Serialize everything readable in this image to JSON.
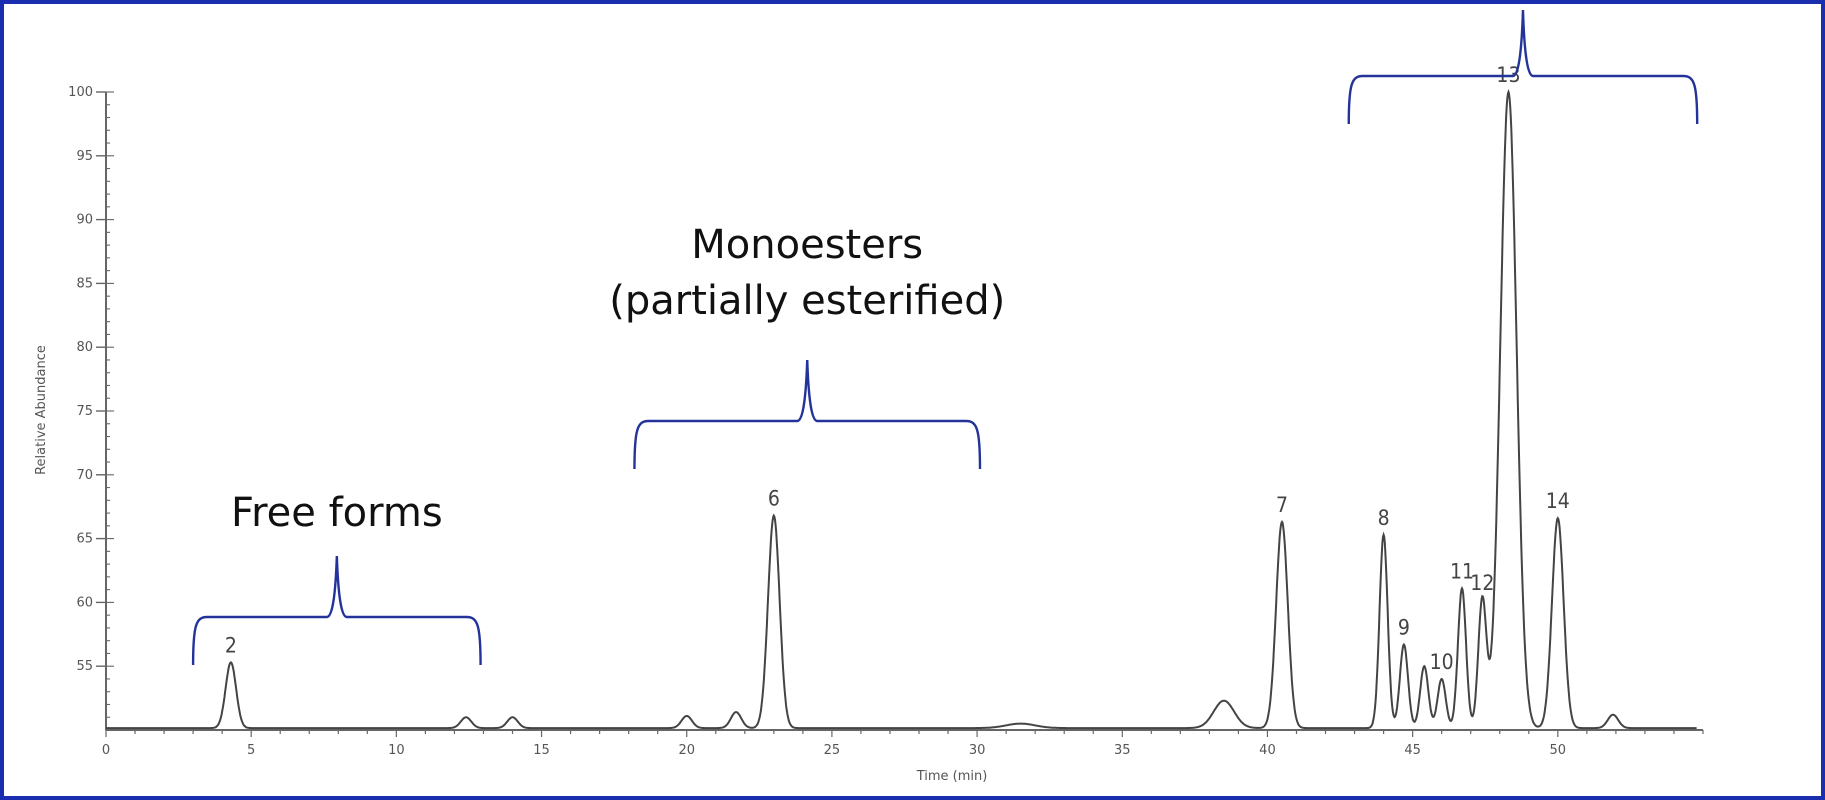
{
  "chart_data": {
    "type": "line",
    "title": "",
    "xlabel": "Time (min)",
    "ylabel": "Relative Abundance",
    "xlim": [
      0,
      55
    ],
    "ylim": [
      50,
      100
    ],
    "x_ticks": [
      0,
      5,
      10,
      15,
      20,
      25,
      30,
      35,
      40,
      45,
      50
    ],
    "y_ticks": [
      55,
      60,
      65,
      70,
      75,
      80,
      85,
      90,
      95,
      100
    ],
    "grid": false,
    "series": [
      {
        "peaks": [
          {
            "label": "2",
            "time": 4.3,
            "height": 55.3
          },
          {
            "label": "",
            "time": 12.4,
            "height": 51.0
          },
          {
            "label": "",
            "time": 14.0,
            "height": 51.0
          },
          {
            "label": "",
            "time": 20.0,
            "height": 51.1
          },
          {
            "label": "",
            "time": 21.7,
            "height": 51.4
          },
          {
            "label": "6",
            "time": 23.0,
            "height": 66.8
          },
          {
            "label": "",
            "time": 31.5,
            "height": 50.5
          },
          {
            "label": "",
            "time": 38.5,
            "height": 52.3
          },
          {
            "label": "7",
            "time": 40.5,
            "height": 66.3
          },
          {
            "label": "8",
            "time": 44.0,
            "height": 65.3
          },
          {
            "label": "9",
            "time": 44.7,
            "height": 56.7
          },
          {
            "label": "",
            "time": 45.4,
            "height": 55.0
          },
          {
            "label": "10",
            "time": 46.0,
            "height": 54.0
          },
          {
            "label": "11",
            "time": 46.7,
            "height": 61.1
          },
          {
            "label": "12",
            "time": 47.4,
            "height": 60.2
          },
          {
            "label": "13",
            "time": 48.3,
            "height": 100
          },
          {
            "label": "14",
            "time": 50.0,
            "height": 66.6
          },
          {
            "label": "",
            "time": 51.9,
            "height": 51.2
          }
        ]
      }
    ],
    "annotations": [
      {
        "text_lines": [
          "Free forms"
        ],
        "range": [
          3.0,
          12.9
        ]
      },
      {
        "text_lines": [
          "Monoesters",
          "(partially esterified)"
        ],
        "range": [
          18.2,
          30.1
        ]
      },
      {
        "text_lines": [],
        "range": [
          42.8,
          54.8
        ]
      }
    ]
  },
  "colors": {
    "frame": "#1a2fb0",
    "bracket": "#23339a",
    "trace": "#444444",
    "axis": "#666666"
  }
}
